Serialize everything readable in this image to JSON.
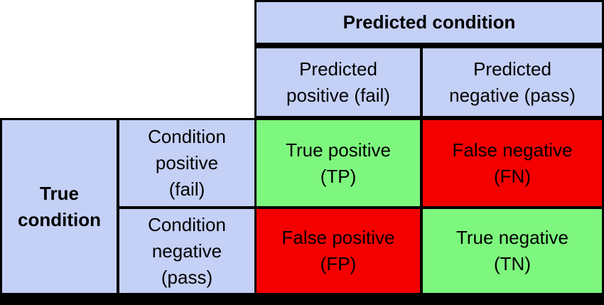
{
  "colors": {
    "header_bg": "#c4d0f6",
    "correct_bg": "#7ef77e",
    "error_bg": "#f50000",
    "border": "#000000",
    "text": "#000000"
  },
  "column_header": {
    "title": "Predicted condition",
    "columns": [
      {
        "line1": "Predicted",
        "line2": "positive (fail)"
      },
      {
        "line1": "Predicted",
        "line2": "negative (pass)"
      }
    ]
  },
  "row_header": {
    "title_line1": "True",
    "title_line2": "condition",
    "rows": [
      {
        "line1": "Condition",
        "line2": "positive",
        "line3": "(fail)"
      },
      {
        "line1": "Condition",
        "line2": "negative",
        "line3": "(pass)"
      }
    ]
  },
  "cells": {
    "tp": {
      "line1": "True positive",
      "line2": "(TP)"
    },
    "fn": {
      "line1": "False negative",
      "line2": "(FN)"
    },
    "fp": {
      "line1": "False positive",
      "line2": "(FP)"
    },
    "tn": {
      "line1": "True negative",
      "line2": "(TN)"
    }
  }
}
